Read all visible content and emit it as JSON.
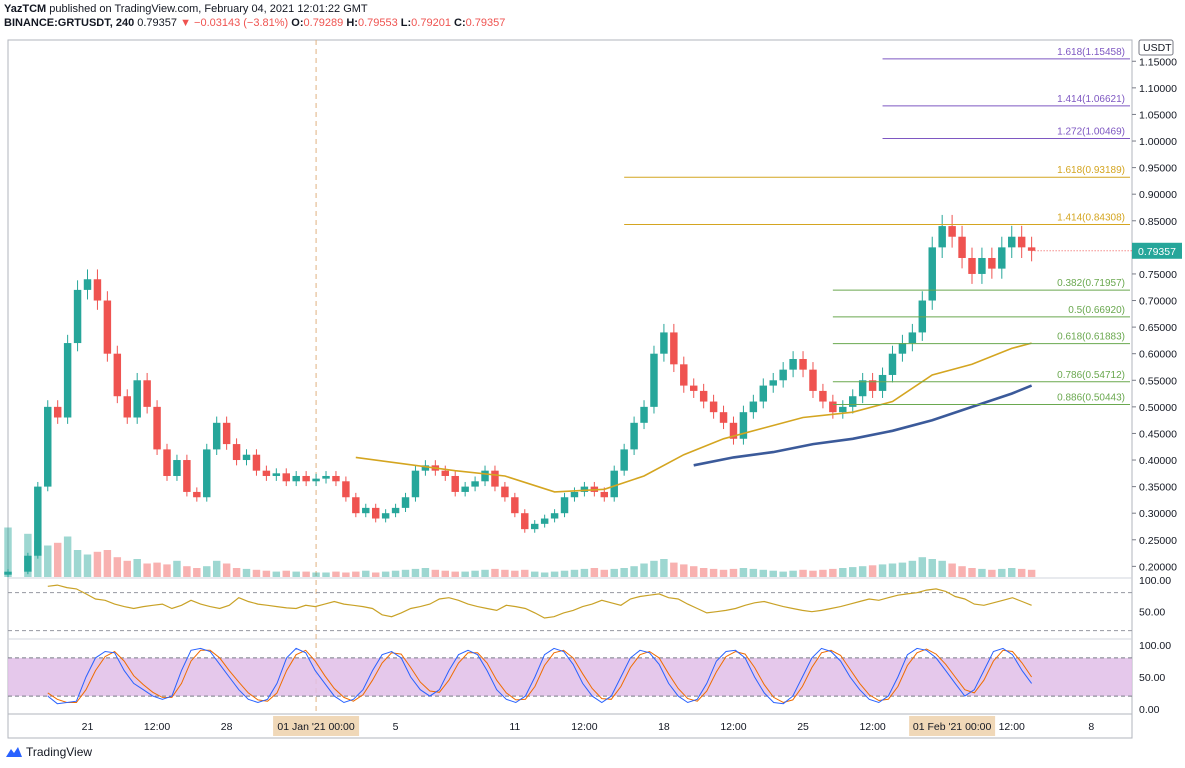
{
  "header": {
    "publisher": "YazTCM",
    "published_text": "published on TradingView.com, February 04, 2021 12:01:22 GMT",
    "symbol": "BINANCE:GRTUSDT, 240",
    "last": "0.79357",
    "change": "−0.03143 (−3.81%)",
    "o_label": "O:",
    "o": "0.79289",
    "h_label": "H:",
    "h": "0.79553",
    "l_label": "L:",
    "l": "0.79201",
    "c_label": "C:",
    "c": "0.79357"
  },
  "footer": {
    "brand": "TradingView"
  },
  "colors": {
    "up": "#26a69a",
    "down": "#ef5350",
    "ma_fast": "#d4a520",
    "ma_slow": "#3b5a9a",
    "fib_ext": "#7e57c2",
    "fib_gold": "#d4a520",
    "fib_ret": "#6aa84f",
    "rsi": "#c9a227",
    "stoch_k": "#2962ff",
    "stoch_d": "#ef6c00",
    "stoch_band": "#e1bee7"
  },
  "chart_data": {
    "type": "candlestick",
    "currency_label": "USDT",
    "current_price_label": "0.79357",
    "y_ticks": [
      "1.15000",
      "1.10000",
      "1.05000",
      "1.00000",
      "0.95000",
      "0.90000",
      "0.85000",
      "0.80000",
      "0.75000",
      "0.70000",
      "0.65000",
      "0.60000",
      "0.55000",
      "0.50000",
      "0.45000",
      "0.40000",
      "0.35000",
      "0.30000",
      "0.25000",
      "0.20000"
    ],
    "ylim": [
      0.18,
      1.19
    ],
    "x_ticks": [
      "21",
      "12:00",
      "28",
      "01 Jan '21",
      "5",
      "11",
      "12:00",
      "18",
      "12:00",
      "25",
      "12:00",
      "01 Feb '21",
      "12:00",
      "8"
    ],
    "x_tick_values": [
      8,
      15,
      22,
      31,
      39,
      51,
      58,
      66,
      73,
      80,
      87,
      95,
      101,
      109
    ],
    "x_highlight_labels": [
      {
        "label": "01 Jan '21  00:00",
        "at": 31
      },
      {
        "label": "01 Feb '21  00:00",
        "at": 95
      }
    ],
    "x_range": [
      0,
      113
    ],
    "price_path": [
      [
        0,
        0.19
      ],
      [
        2,
        0.22
      ],
      [
        3,
        0.35
      ],
      [
        4,
        0.5
      ],
      [
        5,
        0.48
      ],
      [
        6,
        0.62
      ],
      [
        7,
        0.72
      ],
      [
        8,
        0.74
      ],
      [
        9,
        0.7
      ],
      [
        10,
        0.6
      ],
      [
        11,
        0.52
      ],
      [
        12,
        0.48
      ],
      [
        13,
        0.55
      ],
      [
        14,
        0.5
      ],
      [
        15,
        0.42
      ],
      [
        16,
        0.37
      ],
      [
        17,
        0.4
      ],
      [
        18,
        0.34
      ],
      [
        19,
        0.33
      ],
      [
        20,
        0.42
      ],
      [
        21,
        0.47
      ],
      [
        22,
        0.43
      ],
      [
        23,
        0.4
      ],
      [
        24,
        0.41
      ],
      [
        25,
        0.38
      ],
      [
        26,
        0.37
      ],
      [
        27,
        0.375
      ],
      [
        28,
        0.36
      ],
      [
        29,
        0.37
      ],
      [
        30,
        0.36
      ],
      [
        31,
        0.365
      ],
      [
        32,
        0.37
      ],
      [
        33,
        0.36
      ],
      [
        34,
        0.33
      ],
      [
        35,
        0.3
      ],
      [
        36,
        0.31
      ],
      [
        37,
        0.29
      ],
      [
        38,
        0.3
      ],
      [
        39,
        0.31
      ],
      [
        40,
        0.33
      ],
      [
        41,
        0.38
      ],
      [
        42,
        0.39
      ],
      [
        43,
        0.38
      ],
      [
        44,
        0.37
      ],
      [
        45,
        0.34
      ],
      [
        46,
        0.35
      ],
      [
        47,
        0.36
      ],
      [
        48,
        0.38
      ],
      [
        49,
        0.35
      ],
      [
        50,
        0.33
      ],
      [
        51,
        0.3
      ],
      [
        52,
        0.27
      ],
      [
        53,
        0.28
      ],
      [
        54,
        0.29
      ],
      [
        55,
        0.3
      ],
      [
        56,
        0.33
      ],
      [
        57,
        0.34
      ],
      [
        58,
        0.35
      ],
      [
        59,
        0.34
      ],
      [
        60,
        0.33
      ],
      [
        61,
        0.38
      ],
      [
        62,
        0.42
      ],
      [
        63,
        0.47
      ],
      [
        64,
        0.5
      ],
      [
        65,
        0.6
      ],
      [
        66,
        0.64
      ],
      [
        67,
        0.58
      ],
      [
        68,
        0.54
      ],
      [
        69,
        0.53
      ],
      [
        70,
        0.51
      ],
      [
        71,
        0.49
      ],
      [
        72,
        0.47
      ],
      [
        73,
        0.44
      ],
      [
        74,
        0.49
      ],
      [
        75,
        0.51
      ],
      [
        76,
        0.54
      ],
      [
        77,
        0.55
      ],
      [
        78,
        0.57
      ],
      [
        79,
        0.59
      ],
      [
        80,
        0.57
      ],
      [
        81,
        0.53
      ],
      [
        82,
        0.51
      ],
      [
        83,
        0.49
      ],
      [
        84,
        0.5
      ],
      [
        85,
        0.52
      ],
      [
        86,
        0.55
      ],
      [
        87,
        0.53
      ],
      [
        88,
        0.56
      ],
      [
        89,
        0.6
      ],
      [
        90,
        0.62
      ],
      [
        91,
        0.64
      ],
      [
        92,
        0.7
      ],
      [
        93,
        0.8
      ],
      [
        94,
        0.84
      ],
      [
        95,
        0.82
      ],
      [
        96,
        0.78
      ],
      [
        97,
        0.75
      ],
      [
        98,
        0.78
      ],
      [
        99,
        0.76
      ],
      [
        100,
        0.8
      ],
      [
        101,
        0.82
      ],
      [
        102,
        0.8
      ],
      [
        103,
        0.79357
      ]
    ],
    "moving_averages": [
      {
        "points": [
          [
            35,
            0.405
          ],
          [
            45,
            0.38
          ],
          [
            50,
            0.37
          ],
          [
            55,
            0.34
          ],
          [
            60,
            0.345
          ],
          [
            64,
            0.37
          ],
          [
            68,
            0.41
          ],
          [
            72,
            0.44
          ],
          [
            76,
            0.46
          ],
          [
            80,
            0.48
          ],
          [
            85,
            0.49
          ],
          [
            89,
            0.51
          ],
          [
            93,
            0.56
          ],
          [
            97,
            0.58
          ],
          [
            101,
            0.61
          ],
          [
            103,
            0.62
          ]
        ]
      },
      {
        "points": [
          [
            69,
            0.39
          ],
          [
            73,
            0.405
          ],
          [
            77,
            0.415
          ],
          [
            81,
            0.43
          ],
          [
            85,
            0.44
          ],
          [
            89,
            0.455
          ],
          [
            93,
            0.475
          ],
          [
            97,
            0.5
          ],
          [
            101,
            0.525
          ],
          [
            103,
            0.54
          ]
        ]
      }
    ],
    "fib_levels": [
      {
        "label": "1.618(1.15458)",
        "value": 1.15458,
        "x_start": 88,
        "group": "ext"
      },
      {
        "label": "1.414(1.06621)",
        "value": 1.06621,
        "x_start": 88,
        "group": "ext"
      },
      {
        "label": "1.272(1.00469)",
        "value": 1.00469,
        "x_start": 88,
        "group": "ext"
      },
      {
        "label": "1.618(0.93189)",
        "value": 0.93189,
        "x_start": 62,
        "group": "gold"
      },
      {
        "label": "1.414(0.84308)",
        "value": 0.84308,
        "x_start": 62,
        "group": "gold"
      },
      {
        "label": "0.382(0.71957)",
        "value": 0.71957,
        "x_start": 83,
        "group": "ret"
      },
      {
        "label": "0.5(0.66920)",
        "value": 0.6692,
        "x_start": 83,
        "group": "ret"
      },
      {
        "label": "0.618(0.61883)",
        "value": 0.61883,
        "x_start": 83,
        "group": "ret"
      },
      {
        "label": "0.786(0.54712)",
        "value": 0.54712,
        "x_start": 83,
        "group": "ret"
      },
      {
        "label": "0.886(0.50443)",
        "value": 0.50443,
        "x_start": 83,
        "group": "ret"
      }
    ],
    "rsi": {
      "y_ticks": [
        "100.00",
        "50.00"
      ],
      "ylim": [
        10,
        100
      ],
      "bands": [
        80,
        20
      ],
      "values": [
        90,
        92,
        88,
        86,
        78,
        70,
        68,
        62,
        58,
        55,
        58,
        60,
        62,
        55,
        60,
        68,
        62,
        58,
        55,
        60,
        72,
        66,
        62,
        60,
        58,
        56,
        55,
        60,
        58,
        62,
        66,
        62,
        60,
        58,
        55,
        45,
        42,
        48,
        55,
        58,
        62,
        70,
        72,
        68,
        62,
        58,
        55,
        52,
        60,
        58,
        55,
        48,
        40,
        42,
        48,
        52,
        58,
        62,
        68,
        64,
        60,
        70,
        74,
        76,
        78,
        72,
        70,
        62,
        55,
        48,
        50,
        52,
        55,
        60,
        64,
        66,
        62,
        58,
        55,
        52,
        50,
        52,
        55,
        58,
        62,
        66,
        70,
        68,
        72,
        76,
        78,
        80,
        84,
        86,
        82,
        74,
        70,
        62,
        60,
        64,
        68,
        72,
        66,
        60
      ]
    },
    "stoch": {
      "y_ticks": [
        "100.00",
        "50.00",
        "0.00"
      ],
      "ylim": [
        -5,
        105
      ],
      "bands": [
        80,
        20
      ],
      "k_values": [
        20,
        8,
        10,
        12,
        50,
        80,
        90,
        88,
        60,
        40,
        30,
        20,
        15,
        20,
        60,
        92,
        95,
        90,
        70,
        50,
        30,
        15,
        10,
        15,
        40,
        80,
        95,
        88,
        60,
        40,
        20,
        10,
        15,
        30,
        60,
        85,
        90,
        80,
        50,
        30,
        20,
        30,
        60,
        85,
        92,
        85,
        60,
        30,
        15,
        10,
        20,
        50,
        85,
        95,
        90,
        70,
        40,
        20,
        10,
        20,
        50,
        80,
        92,
        88,
        70,
        40,
        20,
        10,
        15,
        40,
        75,
        90,
        92,
        80,
        50,
        25,
        10,
        8,
        20,
        50,
        80,
        95,
        90,
        75,
        50,
        30,
        15,
        10,
        20,
        50,
        85,
        95,
        92,
        80,
        60,
        40,
        20,
        30,
        60,
        90,
        95,
        85,
        60,
        40
      ],
      "d_values": [
        25,
        15,
        10,
        10,
        30,
        60,
        82,
        90,
        75,
        52,
        38,
        26,
        18,
        18,
        40,
        75,
        92,
        92,
        80,
        60,
        42,
        25,
        14,
        12,
        25,
        60,
        85,
        92,
        75,
        52,
        32,
        18,
        12,
        22,
        45,
        72,
        88,
        86,
        65,
        42,
        28,
        26,
        45,
        72,
        88,
        88,
        72,
        45,
        25,
        14,
        15,
        35,
        68,
        88,
        92,
        80,
        55,
        32,
        16,
        15,
        35,
        65,
        85,
        90,
        80,
        55,
        32,
        16,
        12,
        28,
        58,
        82,
        90,
        86,
        65,
        38,
        18,
        10,
        14,
        35,
        65,
        88,
        92,
        84,
        62,
        40,
        22,
        13,
        15,
        35,
        68,
        88,
        94,
        86,
        70,
        50,
        30,
        25,
        45,
        75,
        92,
        90,
        72,
        50
      ]
    },
    "volume": [
      55,
      48,
      40,
      35,
      38,
      45,
      30,
      25,
      28,
      30,
      22,
      18,
      20,
      15,
      16,
      14,
      18,
      12,
      10,
      12,
      18,
      15,
      10,
      9,
      8,
      7,
      6,
      7,
      6,
      6,
      5,
      5,
      6,
      5,
      6,
      7,
      5,
      6,
      7,
      8,
      9,
      10,
      8,
      7,
      6,
      6,
      7,
      8,
      9,
      8,
      7,
      8,
      6,
      5,
      6,
      7,
      8,
      9,
      10,
      8,
      9,
      10,
      12,
      15,
      18,
      20,
      16,
      14,
      12,
      10,
      9,
      8,
      9,
      10,
      9,
      8,
      7,
      6,
      7,
      8,
      7,
      8,
      9,
      10,
      11,
      12,
      13,
      14,
      15,
      16,
      18,
      22,
      20,
      18,
      15,
      12,
      10,
      9,
      8,
      9,
      10,
      9,
      8,
      7
    ]
  }
}
